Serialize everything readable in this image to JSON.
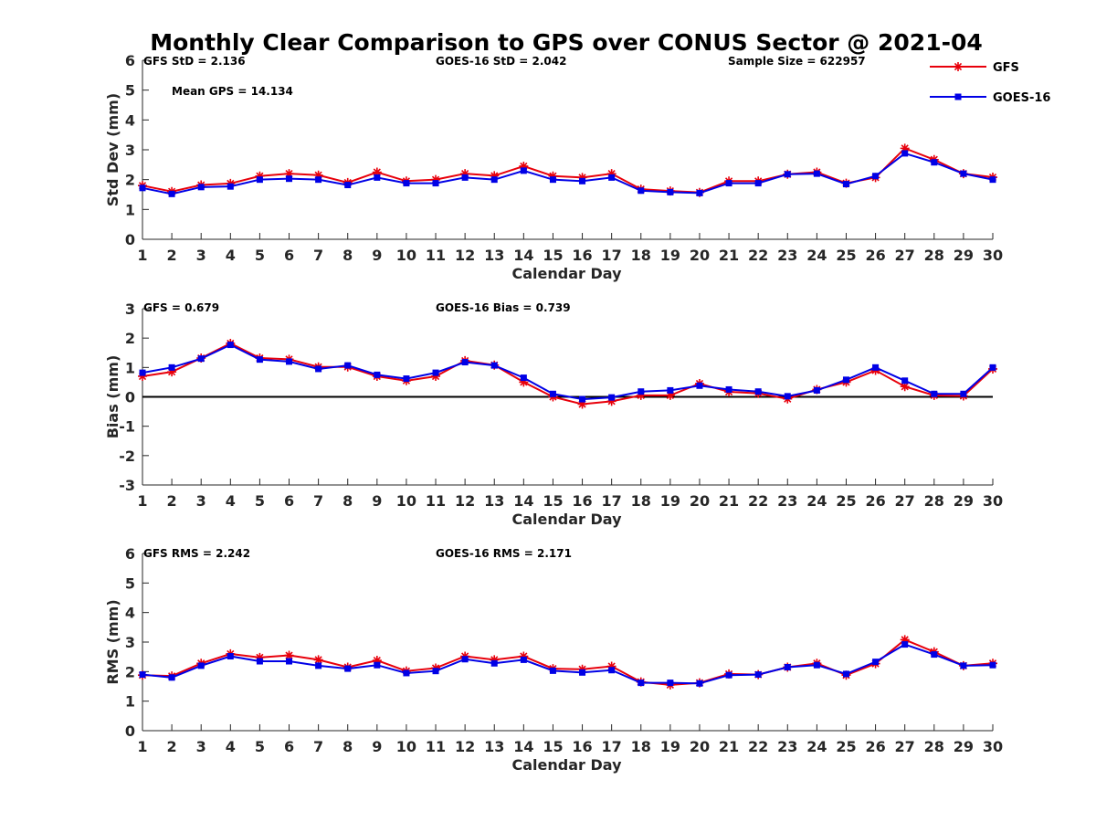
{
  "chart_data": {
    "title": "Monthly Clear Comparison to GPS over CONUS Sector @ 2021-04",
    "colors": {
      "GFS": "#e8000b",
      "GOES-16": "#0000e6",
      "axis": "#262626"
    },
    "legend": {
      "placement": "top-right",
      "entries": [
        "GFS",
        "GOES-16"
      ]
    },
    "panels": [
      {
        "type": "line",
        "title": "",
        "xlabel": "Calendar Day",
        "ylabel": "Std Dev (mm)",
        "xlim": [
          1,
          30
        ],
        "ylim": [
          0,
          6
        ],
        "yticks": [
          "0",
          "1",
          "2",
          "3",
          "4",
          "5",
          "6"
        ],
        "x": [
          1,
          2,
          3,
          4,
          5,
          6,
          7,
          8,
          9,
          10,
          11,
          12,
          13,
          14,
          15,
          16,
          17,
          18,
          19,
          20,
          21,
          22,
          23,
          24,
          25,
          26,
          27,
          28,
          29,
          30
        ],
        "series": [
          {
            "name": "GFS",
            "values": [
              1.8,
              1.6,
              1.82,
              1.87,
              2.12,
              2.2,
              2.15,
              1.9,
              2.25,
              1.95,
              2.0,
              2.2,
              2.13,
              2.45,
              2.12,
              2.07,
              2.2,
              1.68,
              1.62,
              1.57,
              1.95,
              1.95,
              2.18,
              2.25,
              1.88,
              2.07,
              3.05,
              2.67,
              2.2,
              2.08
            ]
          },
          {
            "name": "GOES-16",
            "values": [
              1.72,
              1.52,
              1.75,
              1.77,
              2.0,
              2.03,
              2.0,
              1.82,
              2.07,
              1.88,
              1.88,
              2.07,
              2.0,
              2.3,
              2.0,
              1.95,
              2.07,
              1.63,
              1.58,
              1.55,
              1.88,
              1.88,
              2.18,
              2.2,
              1.85,
              2.12,
              2.88,
              2.58,
              2.2,
              2.0
            ]
          }
        ],
        "annotations": [
          "GFS StD = 2.136",
          "GOES-16 StD = 2.042",
          "Sample Size = 622957",
          "Mean GPS = 14.134"
        ]
      },
      {
        "type": "line",
        "title": "",
        "xlabel": "Calendar Day",
        "ylabel": "Bias (mm)",
        "xlim": [
          1,
          30
        ],
        "ylim": [
          -3,
          3
        ],
        "yticks": [
          "-3",
          "-2",
          "-1",
          "0",
          "1",
          "2",
          "3"
        ],
        "zero_line": true,
        "x": [
          1,
          2,
          3,
          4,
          5,
          6,
          7,
          8,
          9,
          10,
          11,
          12,
          13,
          14,
          15,
          16,
          17,
          18,
          19,
          20,
          21,
          22,
          23,
          24,
          25,
          26,
          27,
          28,
          29,
          30
        ],
        "series": [
          {
            "name": "GFS",
            "values": [
              0.7,
              0.85,
              1.32,
              1.82,
              1.32,
              1.28,
              1.02,
              1.02,
              0.7,
              0.55,
              0.7,
              1.23,
              1.08,
              0.5,
              0.0,
              -0.25,
              -0.15,
              0.05,
              0.05,
              0.45,
              0.17,
              0.12,
              -0.07,
              0.25,
              0.5,
              0.9,
              0.35,
              0.05,
              0.03,
              0.95
            ]
          },
          {
            "name": "GOES-16",
            "values": [
              0.82,
              1.0,
              1.3,
              1.77,
              1.27,
              1.2,
              0.95,
              1.07,
              0.75,
              0.62,
              0.82,
              1.18,
              1.07,
              0.65,
              0.1,
              -0.08,
              -0.02,
              0.18,
              0.22,
              0.38,
              0.25,
              0.18,
              0.02,
              0.22,
              0.58,
              1.0,
              0.55,
              0.1,
              0.1,
              1.0
            ]
          }
        ],
        "annotations": [
          "GFS = 0.679",
          "GOES-16 Bias = 0.739"
        ]
      },
      {
        "type": "line",
        "title": "",
        "xlabel": "Calendar Day",
        "ylabel": "RMS (mm)",
        "xlim": [
          1,
          30
        ],
        "ylim": [
          0,
          6
        ],
        "yticks": [
          "0",
          "1",
          "2",
          "3",
          "4",
          "5",
          "6"
        ],
        "x": [
          1,
          2,
          3,
          4,
          5,
          6,
          7,
          8,
          9,
          10,
          11,
          12,
          13,
          14,
          15,
          16,
          17,
          18,
          19,
          20,
          21,
          22,
          23,
          24,
          25,
          26,
          27,
          28,
          29,
          30
        ],
        "series": [
          {
            "name": "GFS",
            "values": [
              1.88,
              1.85,
              2.28,
              2.6,
              2.48,
              2.55,
              2.4,
              2.15,
              2.38,
              2.02,
              2.12,
              2.52,
              2.4,
              2.52,
              2.1,
              2.08,
              2.18,
              1.65,
              1.55,
              1.62,
              1.92,
              1.9,
              2.15,
              2.28,
              1.88,
              2.27,
              3.08,
              2.67,
              2.2,
              2.28
            ]
          },
          {
            "name": "GOES-16",
            "values": [
              1.9,
              1.8,
              2.2,
              2.52,
              2.35,
              2.35,
              2.2,
              2.1,
              2.22,
              1.95,
              2.02,
              2.42,
              2.28,
              2.4,
              2.03,
              1.97,
              2.05,
              1.62,
              1.62,
              1.6,
              1.88,
              1.9,
              2.15,
              2.22,
              1.92,
              2.33,
              2.92,
              2.58,
              2.2,
              2.22
            ]
          }
        ],
        "annotations": [
          "GFS RMS = 2.242",
          "GOES-16 RMS = 2.171"
        ]
      }
    ]
  }
}
